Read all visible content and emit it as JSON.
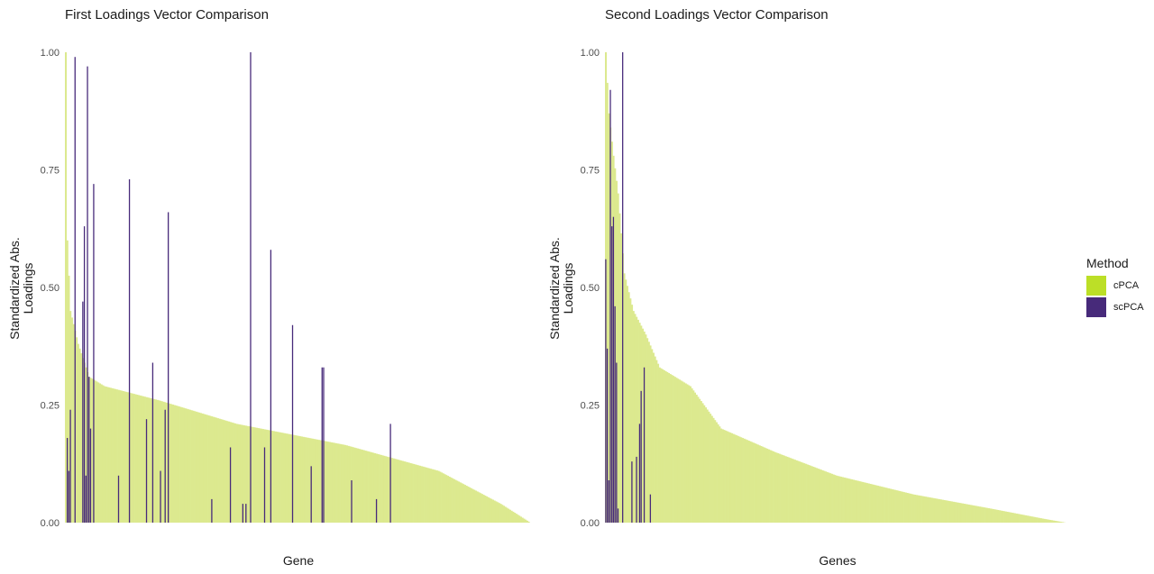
{
  "chart_data": [
    {
      "type": "bar",
      "title": "First Loadings Vector Comparison",
      "xlabel": "Gene",
      "ylabel_lines": [
        "Standardized Abs.",
        "Loadings"
      ],
      "ylim": [
        0,
        1
      ],
      "yticks": [
        "0.00",
        "0.25",
        "0.50",
        "0.75",
        "1.00"
      ],
      "n_genes": 300,
      "series": [
        {
          "name": "cPCA",
          "color": "#dce98f",
          "curve": [
            [
              0,
              1.0
            ],
            [
              1,
              0.6
            ],
            [
              3,
              0.45
            ],
            [
              8,
              0.38
            ],
            [
              15,
              0.31
            ],
            [
              25,
              0.29
            ],
            [
              60,
              0.26
            ],
            [
              110,
              0.21
            ],
            [
              180,
              0.165
            ],
            [
              240,
              0.11
            ],
            [
              280,
              0.04
            ],
            [
              299,
              0.0
            ]
          ]
        },
        {
          "name": "scPCA",
          "color": "#472a7a",
          "bars": [
            {
              "gene": 1,
              "value": 0.18
            },
            {
              "gene": 2,
              "value": 0.11
            },
            {
              "gene": 3,
              "value": 0.24
            },
            {
              "gene": 6,
              "value": 0.99
            },
            {
              "gene": 11,
              "value": 0.47
            },
            {
              "gene": 12,
              "value": 0.63
            },
            {
              "gene": 13,
              "value": 0.1
            },
            {
              "gene": 14,
              "value": 0.97
            },
            {
              "gene": 15,
              "value": 0.31
            },
            {
              "gene": 16,
              "value": 0.2
            },
            {
              "gene": 18,
              "value": 0.72
            },
            {
              "gene": 34,
              "value": 0.1
            },
            {
              "gene": 41,
              "value": 0.73
            },
            {
              "gene": 52,
              "value": 0.22
            },
            {
              "gene": 56,
              "value": 0.34
            },
            {
              "gene": 61,
              "value": 0.11
            },
            {
              "gene": 64,
              "value": 0.24
            },
            {
              "gene": 66,
              "value": 0.66
            },
            {
              "gene": 94,
              "value": 0.05
            },
            {
              "gene": 106,
              "value": 0.16
            },
            {
              "gene": 114,
              "value": 0.04
            },
            {
              "gene": 116,
              "value": 0.04
            },
            {
              "gene": 119,
              "value": 1.0
            },
            {
              "gene": 128,
              "value": 0.16
            },
            {
              "gene": 132,
              "value": 0.58
            },
            {
              "gene": 146,
              "value": 0.42
            },
            {
              "gene": 158,
              "value": 0.12
            },
            {
              "gene": 165,
              "value": 0.33
            },
            {
              "gene": 166,
              "value": 0.33
            },
            {
              "gene": 184,
              "value": 0.09
            },
            {
              "gene": 200,
              "value": 0.05
            },
            {
              "gene": 209,
              "value": 0.21
            }
          ]
        }
      ]
    },
    {
      "type": "bar",
      "title": "Second Loadings Vector Comparison",
      "xlabel": "Genes",
      "ylabel_lines": [
        "Standardized Abs.",
        "Loadings"
      ],
      "ylim": [
        0,
        1
      ],
      "yticks": [
        "0.00",
        "0.25",
        "0.50",
        "0.75",
        "1.00"
      ],
      "n_genes": 300,
      "series": [
        {
          "name": "cPCA",
          "color": "#dce98f",
          "curve": [
            [
              0,
              1.0
            ],
            [
              2,
              0.87
            ],
            [
              5,
              0.78
            ],
            [
              8,
              0.7
            ],
            [
              12,
              0.53
            ],
            [
              18,
              0.45
            ],
            [
              26,
              0.4
            ],
            [
              35,
              0.33
            ],
            [
              55,
              0.29
            ],
            [
              75,
              0.2
            ],
            [
              110,
              0.15
            ],
            [
              150,
              0.1
            ],
            [
              200,
              0.06
            ],
            [
              250,
              0.03
            ],
            [
              285,
              0.008
            ],
            [
              299,
              0.0
            ]
          ]
        },
        {
          "name": "scPCA",
          "color": "#472a7a",
          "bars": [
            {
              "gene": 0,
              "value": 0.56
            },
            {
              "gene": 1,
              "value": 0.37
            },
            {
              "gene": 2,
              "value": 0.09
            },
            {
              "gene": 3,
              "value": 0.92
            },
            {
              "gene": 4,
              "value": 0.63
            },
            {
              "gene": 5,
              "value": 0.65
            },
            {
              "gene": 6,
              "value": 0.46
            },
            {
              "gene": 7,
              "value": 0.34
            },
            {
              "gene": 8,
              "value": 0.03
            },
            {
              "gene": 11,
              "value": 1.0
            },
            {
              "gene": 17,
              "value": 0.13
            },
            {
              "gene": 20,
              "value": 0.14
            },
            {
              "gene": 22,
              "value": 0.21
            },
            {
              "gene": 23,
              "value": 0.28
            },
            {
              "gene": 25,
              "value": 0.33
            },
            {
              "gene": 29,
              "value": 0.06
            }
          ]
        }
      ]
    }
  ],
  "legend": {
    "title": "Method",
    "items": [
      {
        "label": "cPCA",
        "color": "#bcdf27"
      },
      {
        "label": "scPCA",
        "color": "#472a7a"
      }
    ]
  }
}
